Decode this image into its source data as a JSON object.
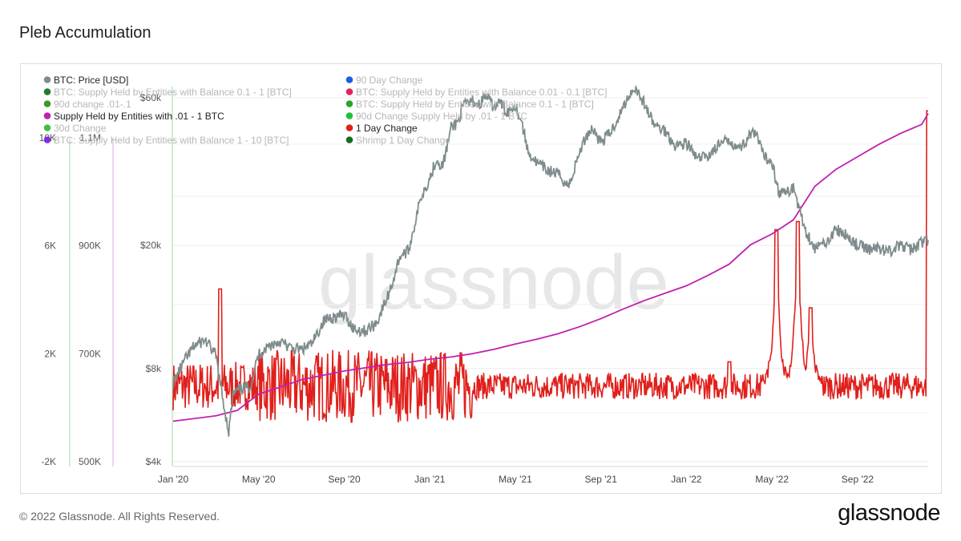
{
  "page": {
    "title": "Pleb Accumulation",
    "copyright": "© 2022 Glassnode. All Rights Reserved.",
    "brand": "glassnode",
    "watermark": "glassnode"
  },
  "colors": {
    "price": "#7f8c8d",
    "supply": "#c020b0",
    "day_change": "#e0201c",
    "grid": "#ececec",
    "axis_text": "#555555"
  },
  "chart_data": {
    "type": "line",
    "title": "Pleb Accumulation",
    "x_ticks": [
      "Jan '20",
      "May '20",
      "Sep '20",
      "Jan '21",
      "May '21",
      "Sep '21",
      "Jan '22",
      "May '22",
      "Sep '22"
    ],
    "x_tick_months": [
      0,
      4,
      8,
      12,
      16,
      20,
      24,
      28,
      32
    ],
    "x_range_months": [
      0,
      35.3
    ],
    "axes": {
      "price": {
        "ticks": [
          "$4k",
          "$8k",
          "$20k",
          "$60k"
        ],
        "tick_values": [
          4000,
          8000,
          20000,
          60000
        ],
        "scale": "log"
      },
      "change_1d": {
        "ticks": [
          "-2K",
          "2K",
          "6K",
          "10K"
        ],
        "tick_values": [
          -2000,
          2000,
          6000,
          10000
        ]
      },
      "supply": {
        "ticks": [
          "500K",
          "700K",
          "900K",
          "1.1M"
        ],
        "tick_values": [
          500000,
          700000,
          900000,
          1100000
        ]
      }
    },
    "legend": [
      {
        "label": "BTC: Price [USD]",
        "color": "#7f8c8d",
        "active": true
      },
      {
        "label": "90 Day Change",
        "color": "#1a5fe0",
        "active": false
      },
      {
        "label": "BTC: Supply Held by Entities with Balance 0.1 - 1 [BTC]",
        "color": "#1f7a2e",
        "active": false
      },
      {
        "label": "BTC: Supply Held by Entities with Balance 0.01 - 0.1 [BTC]",
        "color": "#e0245e",
        "active": false
      },
      {
        "label": "90d change .01-.1",
        "color": "#3a9a25",
        "active": false
      },
      {
        "label": "BTC: Supply Held by Entities with Balance 0.1 - 1 [BTC]",
        "color": "#2aa52a",
        "active": false
      },
      {
        "label": "Supply Held by Entities with .01 - 1 BTC",
        "color": "#c020b0",
        "active": true
      },
      {
        "label": "90d Change Supply Held by .01 - 1 BTC",
        "color": "#22c03a",
        "active": false
      },
      {
        "label": "30d Change",
        "color": "#3cc23c",
        "active": false
      },
      {
        "label": "1 Day Change",
        "color": "#e0201c",
        "active": true
      },
      {
        "label": "BTC: Supply Held by Entities with Balance 1 - 10 [BTC]",
        "color": "#7b2fe0",
        "active": false
      },
      {
        "label": "Shrimp 1 Day Change",
        "color": "#1a6b1a",
        "active": false
      }
    ],
    "series": [
      {
        "name": "BTC: Price [USD]",
        "axis": "price",
        "x_months": [
          0,
          0.5,
          1,
          1.5,
          2,
          2.3,
          2.6,
          2.8,
          3.2,
          3.6,
          4,
          4.5,
          5,
          5.5,
          6,
          6.5,
          7,
          7.3,
          7.7,
          8,
          8.5,
          9,
          9.5,
          10,
          10.3,
          10.6,
          11,
          11.3,
          11.6,
          12,
          12.3,
          12.6,
          13,
          13.3,
          13.6,
          14,
          14.3,
          14.6,
          15,
          15.3,
          15.6,
          16,
          16.3,
          16.6,
          17,
          17.5,
          18,
          18.5,
          19,
          19.3,
          19.6,
          20,
          20.5,
          21,
          21.3,
          21.6,
          22,
          22.5,
          23,
          23.5,
          24,
          24.5,
          25,
          25.5,
          26,
          26.5,
          27,
          27.3,
          27.6,
          27.8,
          28,
          28.3,
          28.7,
          29,
          29.5,
          30,
          30.5,
          31,
          31.5,
          32,
          32.5,
          33,
          33.5,
          34,
          34.5,
          35,
          35.3
        ],
        "values": [
          7200,
          8400,
          9500,
          9900,
          8800,
          6500,
          5000,
          6600,
          6900,
          7000,
          8900,
          9500,
          9800,
          9300,
          9200,
          9600,
          11300,
          11700,
          11800,
          11900,
          10700,
          10600,
          11200,
          13500,
          15500,
          18500,
          19200,
          23500,
          28900,
          33000,
          38000,
          36000,
          48000,
          50000,
          57000,
          58500,
          57000,
          61000,
          56000,
          58000,
          54000,
          57000,
          50000,
          40000,
          37000,
          35000,
          34000,
          31000,
          40000,
          45000,
          48000,
          43000,
          47000,
          55000,
          61000,
          65000,
          58000,
          49000,
          47000,
          42000,
          43000,
          38000,
          39000,
          42000,
          44000,
          41000,
          46000,
          45000,
          39000,
          38000,
          37500,
          30000,
          29500,
          31000,
          23000,
          19500,
          20500,
          22500,
          21500,
          20000,
          19500,
          19600,
          19200,
          20000,
          19400,
          20500,
          20800
        ]
      },
      {
        "name": "Supply Held by Entities with .01 - 1 BTC",
        "axis": "supply",
        "x_months": [
          0,
          2,
          3,
          4,
          5,
          6,
          8,
          10,
          11,
          12,
          13,
          14,
          15,
          16,
          17,
          18,
          19,
          20,
          21,
          22,
          23,
          24,
          25,
          26,
          27,
          28,
          29,
          30,
          31,
          32,
          33,
          34,
          35,
          35.3
        ],
        "values": [
          575000,
          585000,
          595000,
          625000,
          638000,
          652000,
          668000,
          680000,
          684000,
          690000,
          694000,
          700000,
          708000,
          718000,
          727000,
          737000,
          750000,
          765000,
          782000,
          798000,
          812000,
          826000,
          845000,
          866000,
          902000,
          922000,
          948000,
          1010000,
          1042000,
          1065000,
          1088000,
          1108000,
          1125000,
          1145000
        ]
      },
      {
        "name": "1 Day Change",
        "axis": "change_1d",
        "baseline": 800,
        "noise": 900,
        "spikes": [
          {
            "x_month": 2.2,
            "value": 4400
          },
          {
            "x_month": 26.0,
            "value": 1700
          },
          {
            "x_month": 28.2,
            "value": 6600
          },
          {
            "x_month": 29.2,
            "value": 6900
          },
          {
            "x_month": 29.8,
            "value": 3700
          },
          {
            "x_month": 35.3,
            "value": 11000
          }
        ]
      }
    ]
  }
}
